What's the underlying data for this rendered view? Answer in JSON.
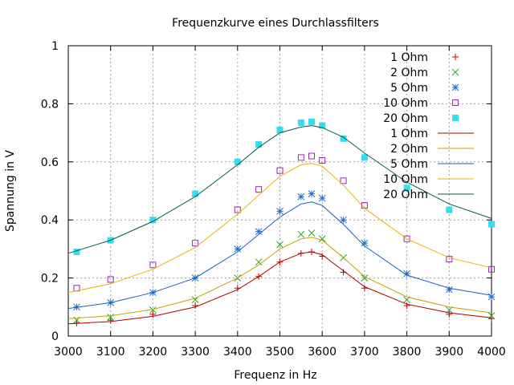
{
  "chart_data": {
    "type": "scatter",
    "title": "Frequenzkurve eines Durchlassfilters",
    "xlabel": "Frequenz in Hz",
    "ylabel": "Spannung in V",
    "xlim": [
      3000,
      4000
    ],
    "ylim": [
      0,
      1
    ],
    "xticks": [
      "3000",
      "3100",
      "3200",
      "3300",
      "3400",
      "3500",
      "3600",
      "3700",
      "3800",
      "3900",
      "4000"
    ],
    "yticks": [
      "0",
      "0.2",
      "0.4",
      "0.6",
      "0.8",
      "1"
    ],
    "grid": true,
    "legend_position": "top-right",
    "series": [
      {
        "name": "1 Ohm",
        "kind": "points",
        "marker": "plus",
        "color": "#cc0000",
        "x": [
          3020,
          3100,
          3200,
          3300,
          3400,
          3450,
          3500,
          3550,
          3575,
          3600,
          3650,
          3700,
          3800,
          3900,
          4000
        ],
        "y": [
          0.045,
          0.055,
          0.075,
          0.105,
          0.165,
          0.205,
          0.255,
          0.285,
          0.29,
          0.275,
          0.22,
          0.165,
          0.105,
          0.075,
          0.06
        ]
      },
      {
        "name": "2 Ohm",
        "kind": "points",
        "marker": "cross",
        "color": "#22aa22",
        "x": [
          3020,
          3100,
          3200,
          3300,
          3400,
          3450,
          3500,
          3550,
          3575,
          3600,
          3650,
          3700,
          3800,
          3900,
          4000
        ],
        "y": [
          0.055,
          0.065,
          0.09,
          0.125,
          0.2,
          0.255,
          0.315,
          0.35,
          0.355,
          0.335,
          0.27,
          0.2,
          0.125,
          0.09,
          0.07
        ]
      },
      {
        "name": "5 Ohm",
        "kind": "points",
        "marker": "star",
        "color": "#1a6fd6",
        "x": [
          3020,
          3100,
          3200,
          3300,
          3400,
          3450,
          3500,
          3550,
          3575,
          3600,
          3650,
          3700,
          3800,
          3900,
          4000
        ],
        "y": [
          0.1,
          0.115,
          0.15,
          0.2,
          0.3,
          0.36,
          0.43,
          0.48,
          0.49,
          0.475,
          0.4,
          0.32,
          0.215,
          0.16,
          0.135
        ]
      },
      {
        "name": "10 Ohm",
        "kind": "points",
        "marker": "square",
        "color": "#a020c0",
        "x": [
          3020,
          3100,
          3200,
          3300,
          3400,
          3450,
          3500,
          3550,
          3575,
          3600,
          3650,
          3700,
          3800,
          3900,
          4000
        ],
        "y": [
          0.165,
          0.195,
          0.245,
          0.32,
          0.435,
          0.505,
          0.57,
          0.615,
          0.62,
          0.605,
          0.535,
          0.45,
          0.335,
          0.265,
          0.23
        ]
      },
      {
        "name": "20 Ohm",
        "kind": "points",
        "marker": "filled-square",
        "color": "#33ddee",
        "x": [
          3020,
          3100,
          3200,
          3300,
          3400,
          3450,
          3500,
          3550,
          3575,
          3600,
          3650,
          3700,
          3800,
          3900,
          4000
        ],
        "y": [
          0.29,
          0.33,
          0.4,
          0.49,
          0.6,
          0.66,
          0.71,
          0.735,
          0.738,
          0.725,
          0.68,
          0.615,
          0.51,
          0.435,
          0.385
        ]
      },
      {
        "name": "1 Ohm",
        "kind": "line",
        "color": "#aa0000",
        "x": [
          3000,
          3100,
          3200,
          3300,
          3400,
          3450,
          3500,
          3550,
          3575,
          3600,
          3650,
          3700,
          3800,
          3900,
          4000
        ],
        "y": [
          0.042,
          0.05,
          0.068,
          0.1,
          0.16,
          0.205,
          0.255,
          0.285,
          0.29,
          0.28,
          0.225,
          0.17,
          0.11,
          0.08,
          0.063
        ]
      },
      {
        "name": "2 Ohm",
        "kind": "line",
        "color": "#c8a000",
        "x": [
          3000,
          3100,
          3200,
          3300,
          3400,
          3450,
          3500,
          3550,
          3575,
          3600,
          3650,
          3700,
          3800,
          3900,
          4000
        ],
        "y": [
          0.06,
          0.07,
          0.092,
          0.13,
          0.2,
          0.245,
          0.3,
          0.335,
          0.34,
          0.33,
          0.27,
          0.205,
          0.135,
          0.1,
          0.08
        ]
      },
      {
        "name": "5 Ohm",
        "kind": "line",
        "color": "#1a5fb4",
        "x": [
          3000,
          3100,
          3200,
          3300,
          3400,
          3450,
          3500,
          3550,
          3575,
          3600,
          3650,
          3700,
          3800,
          3900,
          4000
        ],
        "y": [
          0.095,
          0.115,
          0.15,
          0.2,
          0.29,
          0.35,
          0.41,
          0.455,
          0.462,
          0.45,
          0.385,
          0.31,
          0.21,
          0.165,
          0.14
        ]
      },
      {
        "name": "10 Ohm",
        "kind": "line",
        "color": "#e8b400",
        "x": [
          3000,
          3100,
          3200,
          3300,
          3400,
          3450,
          3500,
          3550,
          3575,
          3600,
          3650,
          3700,
          3800,
          3900,
          4000
        ],
        "y": [
          0.15,
          0.18,
          0.23,
          0.305,
          0.42,
          0.485,
          0.55,
          0.59,
          0.595,
          0.585,
          0.52,
          0.44,
          0.335,
          0.27,
          0.235
        ]
      },
      {
        "name": "20 Ohm",
        "kind": "line",
        "color": "#005b4f",
        "x": [
          3000,
          3100,
          3200,
          3300,
          3400,
          3450,
          3500,
          3550,
          3575,
          3600,
          3650,
          3700,
          3800,
          3900,
          4000
        ],
        "y": [
          0.285,
          0.33,
          0.395,
          0.48,
          0.59,
          0.65,
          0.7,
          0.72,
          0.725,
          0.718,
          0.685,
          0.63,
          0.53,
          0.455,
          0.405
        ]
      }
    ]
  }
}
